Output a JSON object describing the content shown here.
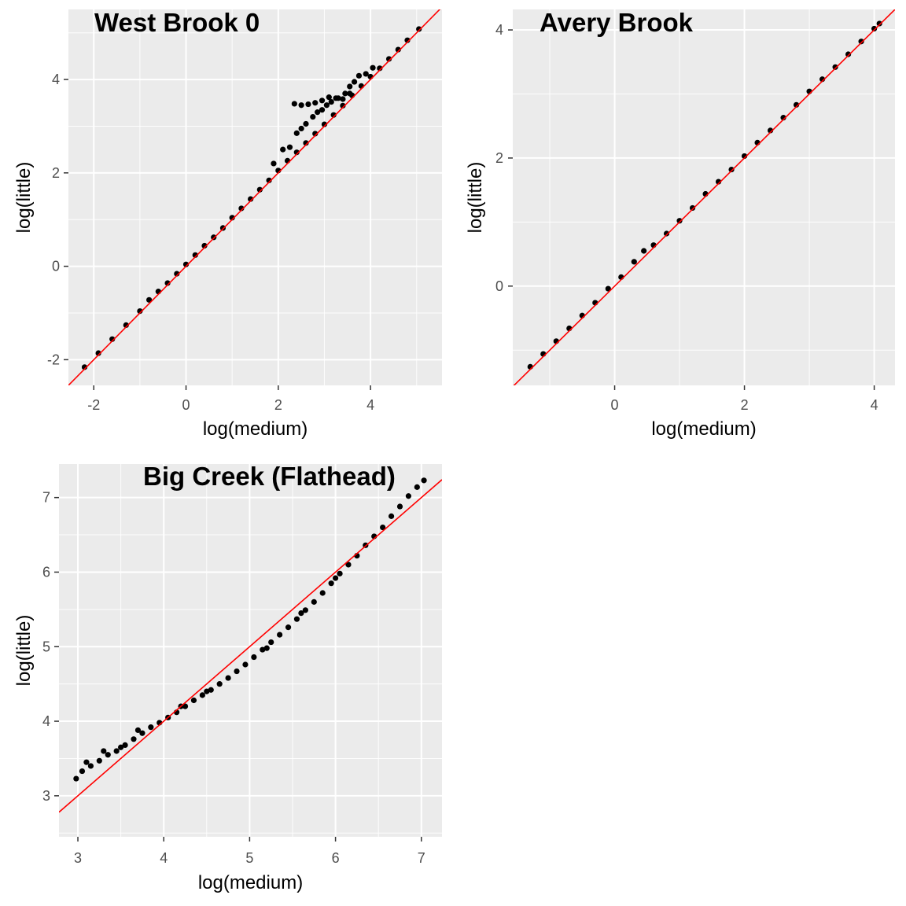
{
  "chart_data": [
    {
      "type": "scatter",
      "title": "West Brook 0",
      "xlabel": "log(medium)",
      "ylabel": "log(little)",
      "xlim": [
        -2.55,
        5.55
      ],
      "ylim": [
        -2.55,
        5.5
      ],
      "xticks": [
        -2,
        0,
        2,
        4
      ],
      "xtick_labels": [
        "-2",
        "0",
        "2",
        "4"
      ],
      "yticks": [
        -2,
        0,
        2,
        4
      ],
      "ytick_labels": [
        "-2",
        "0",
        "2",
        "4"
      ],
      "grid": true,
      "reference_line": {
        "slope": 1,
        "intercept": 0,
        "color": "#ff0000"
      },
      "points": [
        [
          -2.2,
          -2.16
        ],
        [
          -1.9,
          -1.86
        ],
        [
          -1.6,
          -1.56
        ],
        [
          -1.3,
          -1.26
        ],
        [
          -1.0,
          -0.96
        ],
        [
          -0.8,
          -0.72
        ],
        [
          -0.6,
          -0.54
        ],
        [
          -0.4,
          -0.36
        ],
        [
          -0.2,
          -0.16
        ],
        [
          0.0,
          0.04
        ],
        [
          0.2,
          0.24
        ],
        [
          0.4,
          0.44
        ],
        [
          0.6,
          0.62
        ],
        [
          0.8,
          0.82
        ],
        [
          1.0,
          1.04
        ],
        [
          1.2,
          1.24
        ],
        [
          1.4,
          1.44
        ],
        [
          1.6,
          1.64
        ],
        [
          1.8,
          1.84
        ],
        [
          2.0,
          2.05
        ],
        [
          2.2,
          2.26
        ],
        [
          2.4,
          2.44
        ],
        [
          2.6,
          2.64
        ],
        [
          2.8,
          2.84
        ],
        [
          3.0,
          3.04
        ],
        [
          3.2,
          3.24
        ],
        [
          3.4,
          3.44
        ],
        [
          3.6,
          3.66
        ],
        [
          3.8,
          3.86
        ],
        [
          4.0,
          4.06
        ],
        [
          4.2,
          4.24
        ],
        [
          4.4,
          4.44
        ],
        [
          4.6,
          4.64
        ],
        [
          4.8,
          4.84
        ],
        [
          5.05,
          5.08
        ],
        [
          1.9,
          2.2
        ],
        [
          2.1,
          2.5
        ],
        [
          2.25,
          2.55
        ],
        [
          2.4,
          2.85
        ],
        [
          2.5,
          2.95
        ],
        [
          2.6,
          3.05
        ],
        [
          2.75,
          3.2
        ],
        [
          2.85,
          3.3
        ],
        [
          2.95,
          3.35
        ],
        [
          3.05,
          3.45
        ],
        [
          3.15,
          3.52
        ],
        [
          3.3,
          3.6
        ],
        [
          3.45,
          3.7
        ],
        [
          3.55,
          3.85
        ],
        [
          3.65,
          3.95
        ],
        [
          3.75,
          4.08
        ],
        [
          3.9,
          4.12
        ],
        [
          4.05,
          4.25
        ],
        [
          2.35,
          3.48
        ],
        [
          2.5,
          3.45
        ],
        [
          2.65,
          3.47
        ],
        [
          2.8,
          3.5
        ],
        [
          2.95,
          3.55
        ],
        [
          3.1,
          3.62
        ],
        [
          3.25,
          3.6
        ],
        [
          3.4,
          3.58
        ],
        [
          3.55,
          3.7
        ]
      ]
    },
    {
      "type": "scatter",
      "title": "Avery Brook",
      "xlabel": "log(medium)",
      "ylabel": "log(little)",
      "xlim": [
        -1.57,
        4.32
      ],
      "ylim": [
        -1.55,
        4.32
      ],
      "xticks": [
        0,
        2,
        4
      ],
      "xtick_labels": [
        "0",
        "2",
        "4"
      ],
      "yticks": [
        0,
        2,
        4
      ],
      "ytick_labels": [
        "0",
        "2",
        "4"
      ],
      "grid": true,
      "reference_line": {
        "slope": 1,
        "intercept": 0,
        "color": "#ff0000"
      },
      "points": [
        [
          -1.3,
          -1.26
        ],
        [
          -1.1,
          -1.06
        ],
        [
          -0.9,
          -0.86
        ],
        [
          -0.7,
          -0.66
        ],
        [
          -0.5,
          -0.46
        ],
        [
          -0.3,
          -0.26
        ],
        [
          -0.1,
          -0.04
        ],
        [
          0.1,
          0.14
        ],
        [
          0.3,
          0.38
        ],
        [
          0.45,
          0.55
        ],
        [
          0.6,
          0.64
        ],
        [
          0.8,
          0.82
        ],
        [
          1.0,
          1.02
        ],
        [
          1.2,
          1.22
        ],
        [
          1.4,
          1.44
        ],
        [
          1.6,
          1.63
        ],
        [
          1.8,
          1.82
        ],
        [
          2.0,
          2.03
        ],
        [
          2.2,
          2.24
        ],
        [
          2.4,
          2.43
        ],
        [
          2.6,
          2.63
        ],
        [
          2.8,
          2.83
        ],
        [
          3.0,
          3.04
        ],
        [
          3.2,
          3.23
        ],
        [
          3.4,
          3.42
        ],
        [
          3.6,
          3.62
        ],
        [
          3.8,
          3.82
        ],
        [
          4.0,
          4.02
        ],
        [
          4.08,
          4.1
        ]
      ]
    },
    {
      "type": "scatter",
      "title": "Big Creek (Flathead)",
      "xlabel": "log(medium)",
      "ylabel": "log(little)",
      "xlim": [
        2.78,
        7.24
      ],
      "ylim": [
        2.45,
        7.45
      ],
      "xticks": [
        3,
        4,
        5,
        6,
        7
      ],
      "xtick_labels": [
        "3",
        "4",
        "5",
        "6",
        "7"
      ],
      "yticks": [
        3,
        4,
        5,
        6,
        7
      ],
      "ytick_labels": [
        "3",
        "4",
        "5",
        "6",
        "7"
      ],
      "grid": true,
      "reference_line": {
        "slope": 1,
        "intercept": 0,
        "color": "#ff0000"
      },
      "points": [
        [
          2.98,
          3.23
        ],
        [
          3.05,
          3.33
        ],
        [
          3.15,
          3.4
        ],
        [
          3.25,
          3.47
        ],
        [
          3.35,
          3.55
        ],
        [
          3.45,
          3.6
        ],
        [
          3.55,
          3.68
        ],
        [
          3.65,
          3.76
        ],
        [
          3.75,
          3.84
        ],
        [
          3.85,
          3.92
        ],
        [
          3.95,
          3.98
        ],
        [
          4.05,
          4.05
        ],
        [
          4.15,
          4.12
        ],
        [
          4.25,
          4.2
        ],
        [
          4.35,
          4.28
        ],
        [
          4.45,
          4.35
        ],
        [
          4.55,
          4.42
        ],
        [
          4.65,
          4.5
        ],
        [
          4.75,
          4.58
        ],
        [
          4.85,
          4.67
        ],
        [
          4.95,
          4.76
        ],
        [
          5.05,
          4.86
        ],
        [
          5.15,
          4.96
        ],
        [
          5.25,
          5.06
        ],
        [
          5.35,
          5.16
        ],
        [
          5.45,
          5.26
        ],
        [
          5.55,
          5.37
        ],
        [
          5.65,
          5.49
        ],
        [
          5.75,
          5.6
        ],
        [
          5.85,
          5.72
        ],
        [
          5.95,
          5.85
        ],
        [
          6.05,
          5.98
        ],
        [
          6.15,
          6.1
        ],
        [
          6.25,
          6.22
        ],
        [
          6.35,
          6.36
        ],
        [
          6.45,
          6.48
        ],
        [
          6.55,
          6.6
        ],
        [
          6.65,
          6.75
        ],
        [
          6.75,
          6.88
        ],
        [
          6.85,
          7.02
        ],
        [
          6.95,
          7.14
        ],
        [
          7.03,
          7.23
        ],
        [
          3.1,
          3.45
        ],
        [
          3.3,
          3.6
        ],
        [
          3.5,
          3.65
        ],
        [
          3.7,
          3.88
        ],
        [
          4.2,
          4.2
        ],
        [
          4.5,
          4.4
        ],
        [
          5.2,
          4.98
        ],
        [
          5.6,
          5.45
        ],
        [
          6.0,
          5.92
        ]
      ]
    }
  ]
}
